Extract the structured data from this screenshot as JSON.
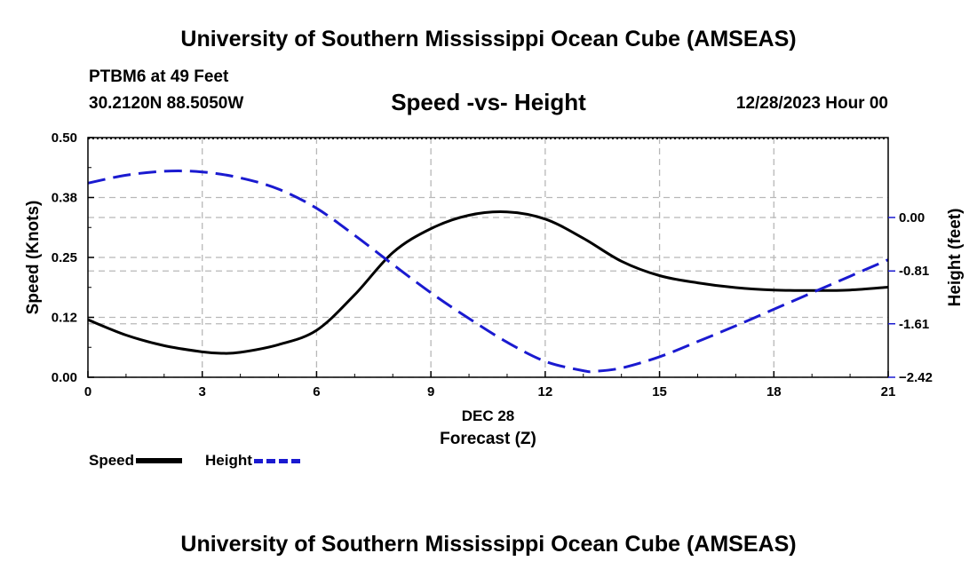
{
  "header": {
    "title": "University of Southern Mississippi Ocean Cube (AMSEAS)",
    "station": "PTBM6 at 49 Feet",
    "coords": "30.2120N  88.5050W",
    "subtitle": "Speed -vs- Height",
    "datetime": "12/28/2023 Hour 00"
  },
  "footer": {
    "title": "University of Southern Mississippi Ocean Cube (AMSEAS)"
  },
  "legend": {
    "speed_label": "Speed",
    "height_label": "Height"
  },
  "colors": {
    "speed": "#000000",
    "height": "#1a1ad0",
    "grid": "#b8b8b8"
  },
  "chart_data": {
    "type": "line",
    "title": "Speed -vs- Height",
    "xlabel": "Forecast (Z)",
    "xlabel_date": "DEC 28",
    "ylabel": "Speed (Knots)",
    "y2label": "Height (feet)",
    "xlim": [
      0,
      21
    ],
    "ylim": [
      0,
      0.5
    ],
    "y2lim": [
      -2.42,
      1.21
    ],
    "x_ticks": [
      0,
      3,
      6,
      9,
      12,
      15,
      18,
      21
    ],
    "x_tick_labels": [
      "0",
      "3",
      "6",
      "9",
      "12",
      "15",
      "18",
      "21"
    ],
    "y_ticks": [
      0,
      0.125,
      0.25,
      0.375,
      0.5
    ],
    "y_tick_labels": [
      "0.00",
      "0.12",
      "0.25",
      "0.38",
      "0.50"
    ],
    "y2_ticks": [
      -2.42,
      -1.61,
      -0.81,
      0.0
    ],
    "y2_tick_labels": [
      "−2.42",
      "-1.61",
      "-0.81",
      "0.00"
    ],
    "grid": true,
    "legend_position": "bottom-left",
    "series": [
      {
        "name": "Speed",
        "axis": "left",
        "style": "solid",
        "x": [
          0,
          1,
          2,
          3,
          3.5,
          4,
          5,
          6,
          7,
          8,
          9,
          10,
          11,
          12,
          13,
          14,
          15,
          16,
          17,
          18,
          19,
          20,
          21
        ],
        "values": [
          0.12,
          0.088,
          0.066,
          0.053,
          0.05,
          0.052,
          0.068,
          0.098,
          0.172,
          0.26,
          0.31,
          0.338,
          0.345,
          0.33,
          0.29,
          0.242,
          0.212,
          0.197,
          0.187,
          0.182,
          0.181,
          0.182,
          0.188
        ]
      },
      {
        "name": "Height",
        "axis": "right",
        "style": "dashed",
        "x": [
          0,
          1,
          2,
          3,
          4,
          5,
          6,
          7,
          8,
          9,
          10,
          11,
          12,
          13,
          13.3,
          14,
          15,
          16,
          17,
          18,
          19,
          20,
          21
        ],
        "values": [
          0.52,
          0.64,
          0.7,
          0.69,
          0.6,
          0.43,
          0.14,
          -0.27,
          -0.71,
          -1.14,
          -1.53,
          -1.89,
          -2.18,
          -2.32,
          -2.33,
          -2.28,
          -2.11,
          -1.88,
          -1.64,
          -1.39,
          -1.14,
          -0.89,
          -0.64
        ]
      }
    ]
  }
}
